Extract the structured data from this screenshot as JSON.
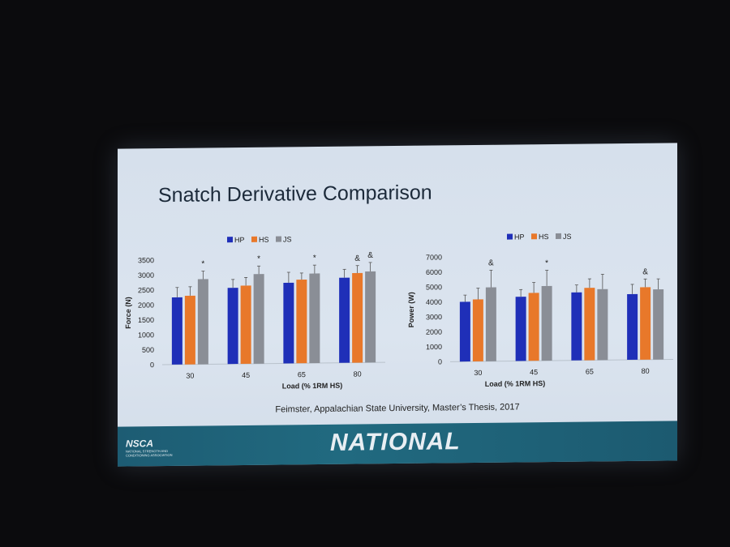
{
  "slide": {
    "title": "Snatch Derivative Comparison",
    "credit": "Feimster, Appalachian State University, Master’s Thesis, 2017",
    "banner_text": "NATIONAL",
    "logo_text": "NSCA",
    "logo_subtext": "NATIONAL STRENGTH AND CONDITIONING ASSOCIATION"
  },
  "chart_data": [
    {
      "type": "bar",
      "title": "",
      "xlabel": "Load (% 1RM HS)",
      "ylabel": "Force (N)",
      "ylim": [
        0,
        3500
      ],
      "yticks": [
        0,
        500,
        1000,
        1500,
        2000,
        2500,
        3000,
        3500
      ],
      "categories": [
        "30",
        "45",
        "65",
        "80"
      ],
      "legend_position": "top",
      "series": [
        {
          "name": "HP",
          "color": "#1f2fb8",
          "values": [
            2250,
            2550,
            2700,
            2850
          ],
          "errors": [
            330,
            280,
            350,
            280
          ],
          "annotations": [
            "",
            "",
            "",
            ""
          ]
        },
        {
          "name": "HS",
          "color": "#e8782a",
          "values": [
            2300,
            2620,
            2800,
            3000
          ],
          "errors": [
            300,
            270,
            220,
            250
          ],
          "annotations": [
            "",
            "",
            "",
            "&"
          ]
        },
        {
          "name": "JS",
          "color": "#8a8e96",
          "values": [
            2850,
            3000,
            3000,
            3050
          ],
          "errors": [
            270,
            270,
            280,
            300
          ],
          "annotations": [
            "*",
            "*",
            "*",
            "&"
          ]
        }
      ]
    },
    {
      "type": "bar",
      "title": "",
      "xlabel": "Load (% 1RM HS)",
      "ylabel": "Power (W)",
      "ylim": [
        0,
        7000
      ],
      "yticks": [
        0,
        1000,
        2000,
        3000,
        4000,
        5000,
        6000,
        7000
      ],
      "categories": [
        "30",
        "45",
        "65",
        "80"
      ],
      "legend_position": "top",
      "series": [
        {
          "name": "HP",
          "color": "#1f2fb8",
          "values": [
            4000,
            4300,
            4550,
            4400
          ],
          "errors": [
            450,
            480,
            500,
            650
          ],
          "annotations": [
            "",
            "",
            "",
            ""
          ]
        },
        {
          "name": "HS",
          "color": "#e8782a",
          "values": [
            4150,
            4550,
            4850,
            4850
          ],
          "errors": [
            750,
            700,
            600,
            550
          ],
          "annotations": [
            "",
            "",
            "",
            "&"
          ]
        },
        {
          "name": "JS",
          "color": "#8a8e96",
          "values": [
            4950,
            5000,
            4750,
            4700
          ],
          "errors": [
            1150,
            1050,
            1000,
            700
          ],
          "annotations": [
            "&",
            "*",
            "",
            ""
          ]
        }
      ]
    }
  ]
}
